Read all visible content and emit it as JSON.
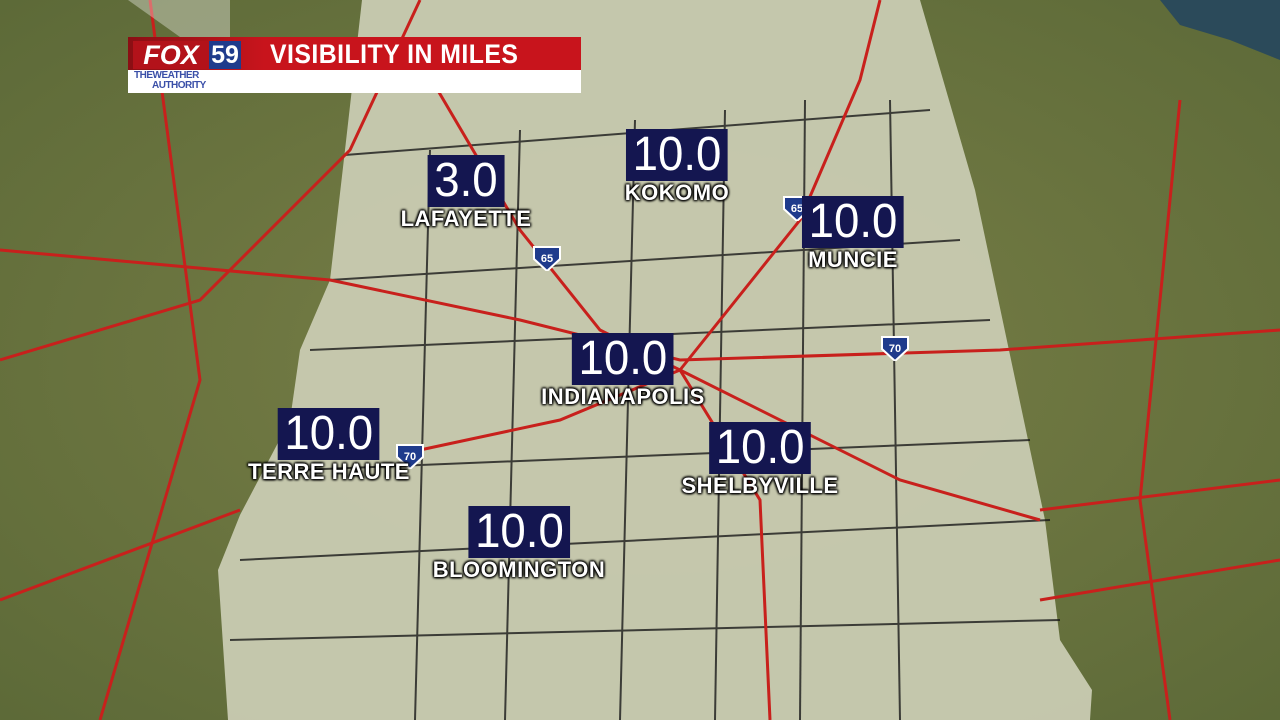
{
  "header": {
    "title": "VISIBILITY IN MILES",
    "logo": {
      "brand": "FOX",
      "channel": "59",
      "tagline_1": "THEWEATHER",
      "tagline_2": "AUTHORITY"
    }
  },
  "colors": {
    "banner_red": "#c8141c",
    "value_box": "#141650",
    "state_fill": "#c9cbb2",
    "terrain": "#6f7a45",
    "highway": "#c8201c"
  },
  "interstates": [
    "65",
    "65",
    "70",
    "70"
  ],
  "cities": [
    {
      "name": "LAFAYETTE",
      "value": "3.0"
    },
    {
      "name": "KOKOMO",
      "value": "10.0"
    },
    {
      "name": "MUNCIE",
      "value": "10.0"
    },
    {
      "name": "INDIANAPOLIS",
      "value": "10.0"
    },
    {
      "name": "TERRE HAUTE",
      "value": "10.0"
    },
    {
      "name": "SHELBYVILLE",
      "value": "10.0"
    },
    {
      "name": "BLOOMINGTON",
      "value": "10.0"
    }
  ]
}
